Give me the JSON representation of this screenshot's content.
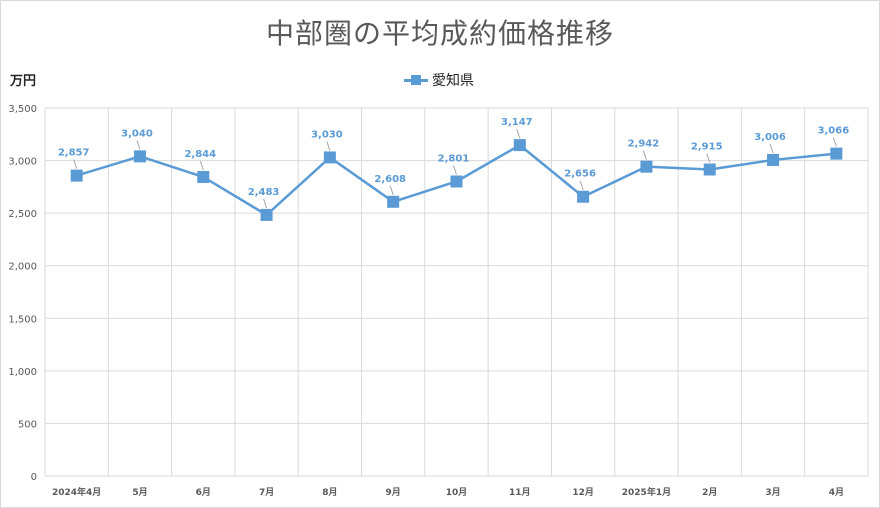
{
  "chart_data": {
    "type": "line",
    "title": "中部圏の平均成約価格推移",
    "ylabel": "万円",
    "xlabel": "",
    "categories": [
      "2024年4月",
      "5月",
      "6月",
      "7月",
      "8月",
      "9月",
      "10月",
      "11月",
      "12月",
      "2025年1月",
      "2月",
      "3月",
      "4月"
    ],
    "series": [
      {
        "name": "愛知県",
        "values": [
          2857,
          3040,
          2844,
          2483,
          3030,
          2608,
          2801,
          3147,
          2656,
          2942,
          2915,
          3006,
          3066
        ],
        "labels": [
          "2,857",
          "3,040",
          "2,844",
          "2,483",
          "3,030",
          "2,608",
          "2,801",
          "3,147",
          "2,656",
          "2,942",
          "2,915",
          "3,006",
          "3,066"
        ],
        "color": "#5b9bd5"
      }
    ],
    "ylim": [
      0,
      3500
    ],
    "yticks": [
      0,
      500,
      1000,
      1500,
      2000,
      2500,
      3000,
      3500
    ],
    "ytick_labels": [
      "0",
      "500",
      "1,000",
      "1,500",
      "2,000",
      "2,500",
      "3,000",
      "3,500"
    ],
    "grid": true,
    "legend": "top-center"
  }
}
